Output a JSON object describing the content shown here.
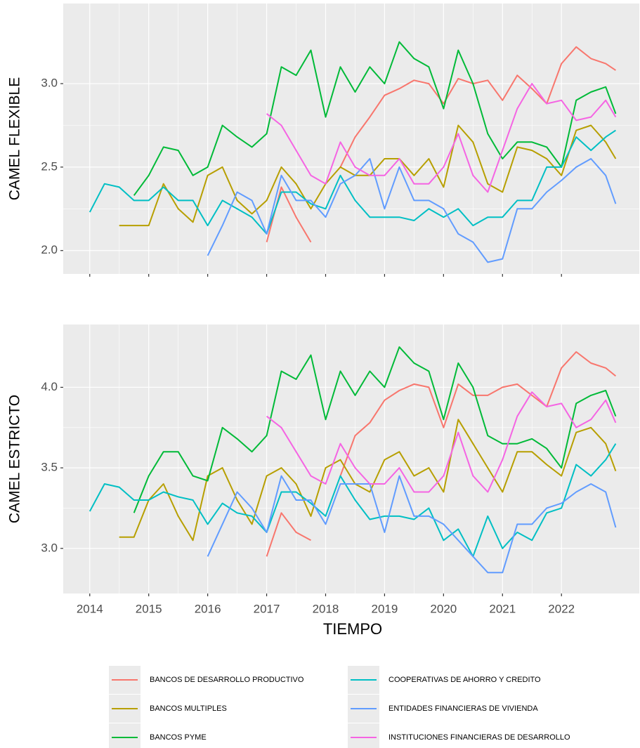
{
  "chart_data": {
    "type": "line",
    "xlabel": "TIEMPO",
    "legend": "bottom",
    "x": [
      2014,
      2014.25,
      2014.5,
      2014.75,
      2015,
      2015.25,
      2015.5,
      2015.75,
      2016,
      2016.25,
      2016.5,
      2016.75,
      2017,
      2017.25,
      2017.5,
      2017.75,
      2018,
      2018.25,
      2018.5,
      2018.75,
      2019,
      2019.25,
      2019.5,
      2019.75,
      2020,
      2020.25,
      2020.5,
      2020.75,
      2021,
      2021.25,
      2021.5,
      2021.75,
      2022,
      2022.25,
      2022.5,
      2022.75,
      2022.92
    ],
    "xlim": [
      2013.55,
      2023.32
    ],
    "xticks": [
      2014,
      2015,
      2016,
      2017,
      2018,
      2019,
      2020,
      2021,
      2022
    ],
    "series": [
      {
        "name": "BANCOS DE DESARROLLO PRODUCTIVO",
        "color": "#F8766D"
      },
      {
        "name": "BANCOS MULTIPLES",
        "color": "#B79F00"
      },
      {
        "name": "BANCOS PYME",
        "color": "#00BA38"
      },
      {
        "name": "COOPERATIVAS DE AHORRO Y CREDITO",
        "color": "#00BFC4"
      },
      {
        "name": "ENTIDADES FINANCIERAS DE VIVIENDA",
        "color": "#619CFF"
      },
      {
        "name": "INSTITUCIONES FINANCIERAS DE DESARROLLO",
        "color": "#F564E3"
      }
    ],
    "panels": [
      {
        "ylabel": "CAMEL FLEXIBLE",
        "ylim": [
          1.86,
          3.48
        ],
        "yticks": [
          {
            "value": 2,
            "label": "2.0"
          },
          2.5,
          {
            "value": 3,
            "label": "3.0"
          }
        ],
        "values": [
          [
            null,
            null,
            null,
            null,
            null,
            null,
            null,
            null,
            null,
            null,
            null,
            null,
            2.05,
            2.38,
            2.2,
            2.05,
            null,
            2.5,
            2.68,
            2.8,
            2.93,
            2.97,
            3.02,
            3.0,
            2.88,
            3.03,
            3.0,
            3.02,
            2.9,
            3.05,
            2.97,
            2.88,
            3.12,
            3.22,
            3.15,
            3.12,
            3.08
          ],
          [
            null,
            null,
            2.15,
            2.15,
            2.15,
            2.4,
            2.25,
            2.17,
            2.45,
            2.5,
            2.3,
            2.22,
            2.3,
            2.5,
            2.4,
            2.25,
            2.4,
            2.5,
            2.45,
            2.45,
            2.55,
            2.55,
            2.45,
            2.55,
            2.38,
            2.75,
            2.65,
            2.4,
            2.35,
            2.62,
            2.6,
            2.55,
            2.45,
            2.72,
            2.75,
            2.65,
            2.55
          ],
          [
            null,
            null,
            null,
            2.33,
            2.45,
            2.62,
            2.6,
            2.45,
            2.5,
            2.75,
            2.68,
            2.62,
            2.7,
            3.1,
            3.05,
            3.2,
            2.8,
            3.1,
            2.95,
            3.1,
            3.0,
            3.25,
            3.15,
            3.1,
            2.85,
            3.2,
            3.0,
            2.7,
            2.55,
            2.65,
            2.65,
            2.62,
            2.5,
            2.9,
            2.95,
            2.98,
            2.82
          ],
          [
            2.23,
            2.4,
            2.38,
            2.3,
            2.3,
            2.38,
            2.3,
            2.3,
            2.15,
            2.3,
            2.25,
            2.2,
            2.1,
            2.35,
            2.35,
            2.28,
            2.25,
            2.45,
            2.3,
            2.2,
            2.2,
            2.2,
            2.18,
            2.25,
            2.2,
            2.25,
            2.15,
            2.2,
            2.2,
            2.3,
            2.3,
            2.5,
            2.5,
            2.68,
            2.6,
            2.68,
            2.72
          ],
          [
            null,
            null,
            null,
            null,
            null,
            null,
            null,
            null,
            1.97,
            2.15,
            2.35,
            2.3,
            2.1,
            2.45,
            2.3,
            2.3,
            2.2,
            2.4,
            2.45,
            2.55,
            2.25,
            2.5,
            2.3,
            2.3,
            2.25,
            2.1,
            2.05,
            1.93,
            1.95,
            2.25,
            2.25,
            2.35,
            2.42,
            2.5,
            2.55,
            2.45,
            2.28
          ],
          [
            null,
            null,
            null,
            null,
            null,
            null,
            null,
            null,
            null,
            null,
            null,
            null,
            2.82,
            2.75,
            2.6,
            2.45,
            2.4,
            2.65,
            2.5,
            2.45,
            2.45,
            2.55,
            2.4,
            2.4,
            2.5,
            2.7,
            2.45,
            2.35,
            2.6,
            2.85,
            3.0,
            2.88,
            2.9,
            2.78,
            2.8,
            2.9,
            2.8
          ]
        ]
      },
      {
        "ylabel": "CAMEL ESTRICTO",
        "ylim": [
          2.72,
          4.39
        ],
        "yticks": [
          {
            "value": 3,
            "label": "3.0"
          },
          3.5,
          {
            "value": 4,
            "label": "4.0"
          }
        ],
        "values": [
          [
            null,
            null,
            null,
            null,
            null,
            null,
            null,
            null,
            null,
            null,
            null,
            null,
            2.95,
            3.22,
            3.1,
            3.05,
            null,
            3.45,
            3.7,
            3.78,
            3.92,
            3.98,
            4.02,
            4.0,
            3.75,
            4.02,
            3.95,
            3.95,
            4.0,
            4.02,
            3.95,
            3.88,
            4.12,
            4.22,
            4.15,
            4.12,
            4.07
          ],
          [
            null,
            null,
            3.07,
            3.07,
            3.3,
            3.4,
            3.2,
            3.05,
            3.45,
            3.5,
            3.3,
            3.15,
            3.45,
            3.5,
            3.4,
            3.2,
            3.5,
            3.55,
            3.4,
            3.35,
            3.55,
            3.6,
            3.45,
            3.5,
            3.35,
            3.8,
            3.65,
            3.5,
            3.35,
            3.6,
            3.6,
            3.52,
            3.45,
            3.72,
            3.75,
            3.65,
            3.48
          ],
          [
            null,
            null,
            null,
            3.22,
            3.45,
            3.6,
            3.6,
            3.45,
            3.42,
            3.75,
            3.68,
            3.6,
            3.7,
            4.1,
            4.05,
            4.2,
            3.8,
            4.1,
            3.95,
            4.1,
            4.0,
            4.25,
            4.15,
            4.1,
            3.8,
            4.15,
            4.0,
            3.7,
            3.65,
            3.65,
            3.68,
            3.62,
            3.5,
            3.9,
            3.95,
            3.98,
            3.82
          ],
          [
            3.23,
            3.4,
            3.38,
            3.3,
            3.3,
            3.35,
            3.32,
            3.3,
            3.15,
            3.28,
            3.22,
            3.2,
            3.1,
            3.35,
            3.35,
            3.28,
            3.2,
            3.45,
            3.3,
            3.18,
            3.2,
            3.2,
            3.18,
            3.25,
            3.05,
            3.12,
            2.95,
            3.2,
            3.0,
            3.1,
            3.05,
            3.22,
            3.25,
            3.52,
            3.45,
            3.55,
            3.65
          ],
          [
            null,
            null,
            null,
            null,
            null,
            null,
            null,
            null,
            2.95,
            3.15,
            3.35,
            3.25,
            3.1,
            3.45,
            3.3,
            3.3,
            3.15,
            3.4,
            3.4,
            3.4,
            3.1,
            3.45,
            3.2,
            3.2,
            3.15,
            3.05,
            2.95,
            2.85,
            2.85,
            3.15,
            3.15,
            3.25,
            3.28,
            3.35,
            3.4,
            3.35,
            3.13
          ],
          [
            null,
            null,
            null,
            null,
            null,
            null,
            null,
            null,
            null,
            null,
            null,
            null,
            3.82,
            3.75,
            3.6,
            3.45,
            3.4,
            3.65,
            3.5,
            3.4,
            3.4,
            3.5,
            3.35,
            3.35,
            3.45,
            3.72,
            3.45,
            3.35,
            3.55,
            3.82,
            3.97,
            3.88,
            3.9,
            3.75,
            3.8,
            3.92,
            3.78
          ]
        ]
      }
    ]
  }
}
